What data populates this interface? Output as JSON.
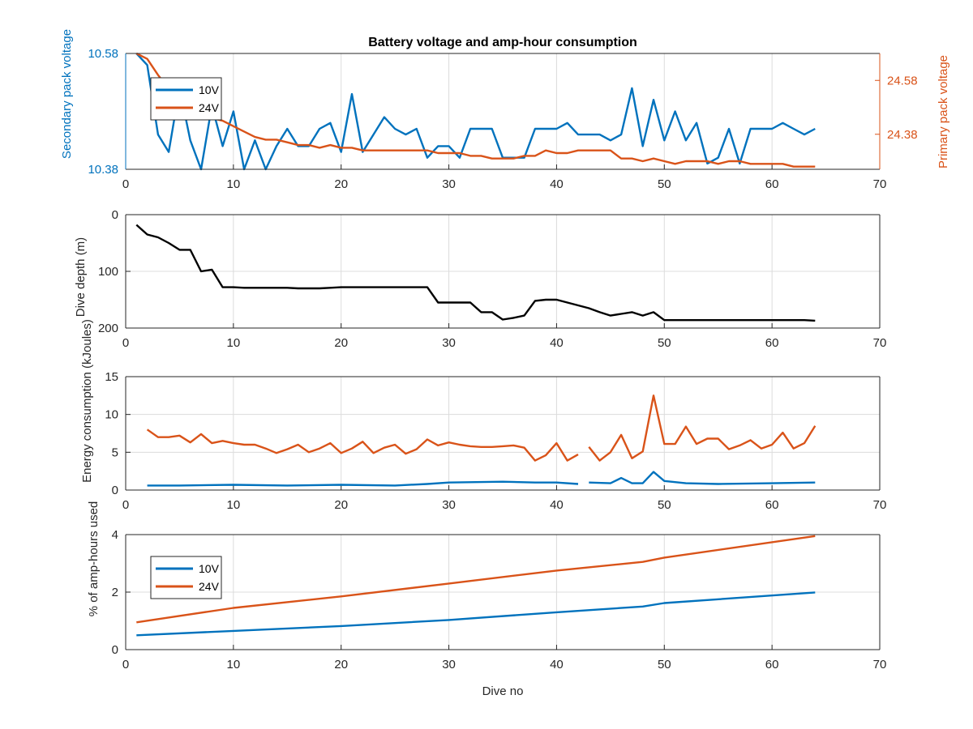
{
  "figure": {
    "title": "Battery voltage and amp-hour consumption",
    "xlabel": "Dive no"
  },
  "colors": {
    "10V": "#0072BD",
    "24V": "#D95319",
    "depth": "#000000",
    "grid": "#dcdcdc",
    "axis": "#262626"
  },
  "chart_data": [
    {
      "type": "line",
      "title": "Battery voltage and amp-hour consumption",
      "xlabel": "",
      "ylabel": "Secondary pack voltage",
      "ylabel_right": "Primary pack voltage",
      "xlim": [
        0,
        70
      ],
      "ylim": [
        10.38,
        10.58
      ],
      "ylim_right": [
        24.25,
        24.68
      ],
      "xticks": [
        "0",
        "10",
        "20",
        "30",
        "40",
        "50",
        "60",
        "70"
      ],
      "yticks": [
        "10.38",
        "10.58"
      ],
      "yticks_right": [
        "24.38",
        "24.58"
      ],
      "grid": true,
      "legend": {
        "placement": "top-left",
        "entries": [
          "10V",
          "24V"
        ]
      },
      "series": [
        {
          "name": "10V",
          "axis": "left",
          "x": [
            1,
            2,
            3,
            4,
            5,
            6,
            7,
            8,
            9,
            10,
            11,
            12,
            13,
            14,
            15,
            16,
            17,
            18,
            19,
            20,
            21,
            22,
            23,
            24,
            25,
            26,
            27,
            28,
            29,
            30,
            31,
            32,
            33,
            34,
            35,
            36,
            37,
            38,
            39,
            40,
            41,
            42,
            43,
            44,
            45,
            46,
            47,
            48,
            49,
            50,
            51,
            52,
            53,
            54,
            55,
            56,
            57,
            58,
            59,
            60,
            61,
            62,
            63,
            64
          ],
          "y": [
            10.58,
            10.56,
            10.44,
            10.41,
            10.52,
            10.43,
            10.38,
            10.49,
            10.42,
            10.48,
            10.38,
            10.43,
            10.38,
            10.42,
            10.45,
            10.42,
            10.42,
            10.45,
            10.46,
            10.41,
            10.51,
            10.41,
            10.44,
            10.47,
            10.45,
            10.44,
            10.45,
            10.4,
            10.42,
            10.42,
            10.4,
            10.45,
            10.45,
            10.45,
            10.4,
            10.4,
            10.4,
            10.45,
            10.45,
            10.45,
            10.46,
            10.44,
            10.44,
            10.44,
            10.43,
            10.44,
            10.52,
            10.42,
            10.5,
            10.43,
            10.48,
            10.43,
            10.46,
            10.39,
            10.4,
            10.45,
            10.39,
            10.45,
            10.45,
            10.45,
            10.46,
            10.45,
            10.44,
            10.45
          ]
        },
        {
          "name": "24V",
          "axis": "right",
          "x": [
            1,
            2,
            3,
            4,
            5,
            6,
            7,
            8,
            9,
            10,
            11,
            12,
            13,
            14,
            15,
            16,
            17,
            18,
            19,
            20,
            21,
            22,
            23,
            24,
            25,
            26,
            27,
            28,
            29,
            30,
            31,
            32,
            33,
            34,
            35,
            36,
            37,
            38,
            39,
            40,
            41,
            42,
            43,
            44,
            45,
            46,
            47,
            48,
            49,
            50,
            51,
            52,
            53,
            54,
            55,
            56,
            57,
            58,
            59,
            60,
            61,
            62,
            63,
            64
          ],
          "y": [
            24.68,
            24.66,
            24.6,
            24.55,
            24.52,
            24.48,
            24.46,
            24.44,
            24.43,
            24.41,
            24.39,
            24.37,
            24.36,
            24.36,
            24.35,
            24.34,
            24.34,
            24.33,
            24.34,
            24.33,
            24.33,
            24.32,
            24.32,
            24.32,
            24.32,
            24.32,
            24.32,
            24.32,
            24.31,
            24.31,
            24.31,
            24.3,
            24.3,
            24.29,
            24.29,
            24.29,
            24.3,
            24.3,
            24.32,
            24.31,
            24.31,
            24.32,
            24.32,
            24.32,
            24.32,
            24.29,
            24.29,
            24.28,
            24.29,
            24.28,
            24.27,
            24.28,
            24.28,
            24.28,
            24.27,
            24.28,
            24.28,
            24.27,
            24.27,
            24.27,
            24.27,
            24.26,
            24.26,
            24.26
          ]
        }
      ]
    },
    {
      "type": "line",
      "xlabel": "",
      "ylabel": "Dive depth (m)",
      "xlim": [
        0,
        70
      ],
      "ylim": [
        0,
        200
      ],
      "y_reversed": true,
      "xticks": [
        "0",
        "10",
        "20",
        "30",
        "40",
        "50",
        "60",
        "70"
      ],
      "yticks": [
        "0",
        "100",
        "200"
      ],
      "grid": true,
      "series": [
        {
          "x": [
            1,
            2,
            3,
            4,
            5,
            6,
            7,
            8,
            9,
            10,
            11,
            12,
            13,
            14,
            15,
            16,
            17,
            18,
            19,
            20,
            21,
            22,
            23,
            24,
            25,
            26,
            27,
            28,
            29,
            30,
            31,
            32,
            33,
            34,
            35,
            36,
            37,
            38,
            39,
            40,
            41,
            42,
            43,
            44,
            45,
            46,
            47,
            48,
            49,
            50,
            51,
            52,
            53,
            54,
            55,
            56,
            57,
            58,
            59,
            60,
            61,
            62,
            63,
            64
          ],
          "y": [
            18,
            35,
            40,
            50,
            62,
            62,
            100,
            97,
            128,
            128,
            129,
            129,
            129,
            129,
            129,
            130,
            130,
            130,
            129,
            128,
            128,
            128,
            128,
            128,
            128,
            128,
            128,
            128,
            155,
            155,
            155,
            155,
            172,
            172,
            185,
            182,
            178,
            152,
            150,
            150,
            155,
            160,
            165,
            172,
            178,
            175,
            172,
            178,
            172,
            186,
            186,
            186,
            186,
            186,
            186,
            186,
            186,
            186,
            186,
            186,
            186,
            186,
            186,
            187
          ]
        }
      ]
    },
    {
      "type": "line",
      "xlabel": "",
      "ylabel": "Energy consumption (kJoules)",
      "xlim": [
        0,
        70
      ],
      "ylim": [
        0,
        15
      ],
      "xticks": [
        "0",
        "10",
        "20",
        "30",
        "40",
        "50",
        "60",
        "70"
      ],
      "yticks": [
        "0",
        "5",
        "10",
        "15"
      ],
      "grid": true,
      "series": [
        {
          "name": "24V",
          "x": [
            2,
            3,
            4,
            5,
            6,
            7,
            8,
            9,
            10,
            11,
            12,
            13,
            14,
            15,
            16,
            17,
            18,
            19,
            20,
            21,
            22,
            23,
            24,
            25,
            26,
            27,
            28,
            29,
            30,
            31,
            32,
            33,
            34,
            35,
            36,
            37,
            38,
            39,
            40,
            41,
            42,
            null,
            43,
            44,
            45,
            46,
            47,
            48,
            49,
            50,
            51,
            52,
            53,
            54,
            55,
            56,
            57,
            58,
            59,
            60,
            61,
            62,
            63,
            64
          ],
          "y": [
            8.0,
            7.0,
            7.0,
            7.2,
            6.3,
            7.4,
            6.2,
            6.5,
            6.2,
            6.0,
            6.0,
            5.5,
            4.9,
            5.4,
            6.0,
            5.0,
            5.5,
            6.2,
            4.9,
            5.5,
            6.4,
            4.9,
            5.6,
            6.0,
            4.8,
            5.4,
            6.7,
            5.9,
            6.3,
            6.0,
            5.8,
            5.7,
            5.7,
            5.8,
            5.9,
            5.6,
            3.9,
            4.6,
            6.2,
            3.9,
            4.7,
            null,
            5.7,
            3.9,
            5.0,
            7.3,
            4.2,
            5.1,
            12.5,
            6.1,
            6.1,
            8.4,
            6.1,
            6.8,
            6.8,
            5.4,
            5.9,
            6.6,
            5.5,
            6.0,
            7.6,
            5.5,
            6.2,
            8.5
          ]
        },
        {
          "name": "10V",
          "x": [
            2,
            5,
            10,
            15,
            20,
            25,
            28,
            30,
            35,
            38,
            40,
            42,
            null,
            43,
            45,
            46,
            47,
            48,
            49,
            50,
            52,
            55,
            60,
            64
          ],
          "y": [
            0.6,
            0.6,
            0.7,
            0.6,
            0.7,
            0.6,
            0.8,
            1.0,
            1.1,
            1.0,
            1.0,
            0.8,
            null,
            1.0,
            0.9,
            1.6,
            0.9,
            0.9,
            2.4,
            1.2,
            0.9,
            0.8,
            0.9,
            1.0
          ]
        }
      ]
    },
    {
      "type": "line",
      "xlabel": "Dive no",
      "ylabel": "% of amp-hours used",
      "xlim": [
        0,
        70
      ],
      "ylim": [
        0,
        4
      ],
      "xticks": [
        "0",
        "10",
        "20",
        "30",
        "40",
        "50",
        "60",
        "70"
      ],
      "yticks": [
        "0",
        "2",
        "4"
      ],
      "grid": true,
      "legend": {
        "placement": "top-left",
        "entries": [
          "10V",
          "24V"
        ]
      },
      "series": [
        {
          "name": "10V",
          "x": [
            1,
            10,
            20,
            30,
            40,
            48,
            50,
            64
          ],
          "y": [
            0.5,
            0.65,
            0.82,
            1.03,
            1.3,
            1.5,
            1.62,
            1.99
          ]
        },
        {
          "name": "24V",
          "x": [
            1,
            10,
            20,
            30,
            40,
            48,
            50,
            64
          ],
          "y": [
            0.95,
            1.45,
            1.85,
            2.3,
            2.75,
            3.05,
            3.2,
            3.95
          ]
        }
      ]
    }
  ]
}
